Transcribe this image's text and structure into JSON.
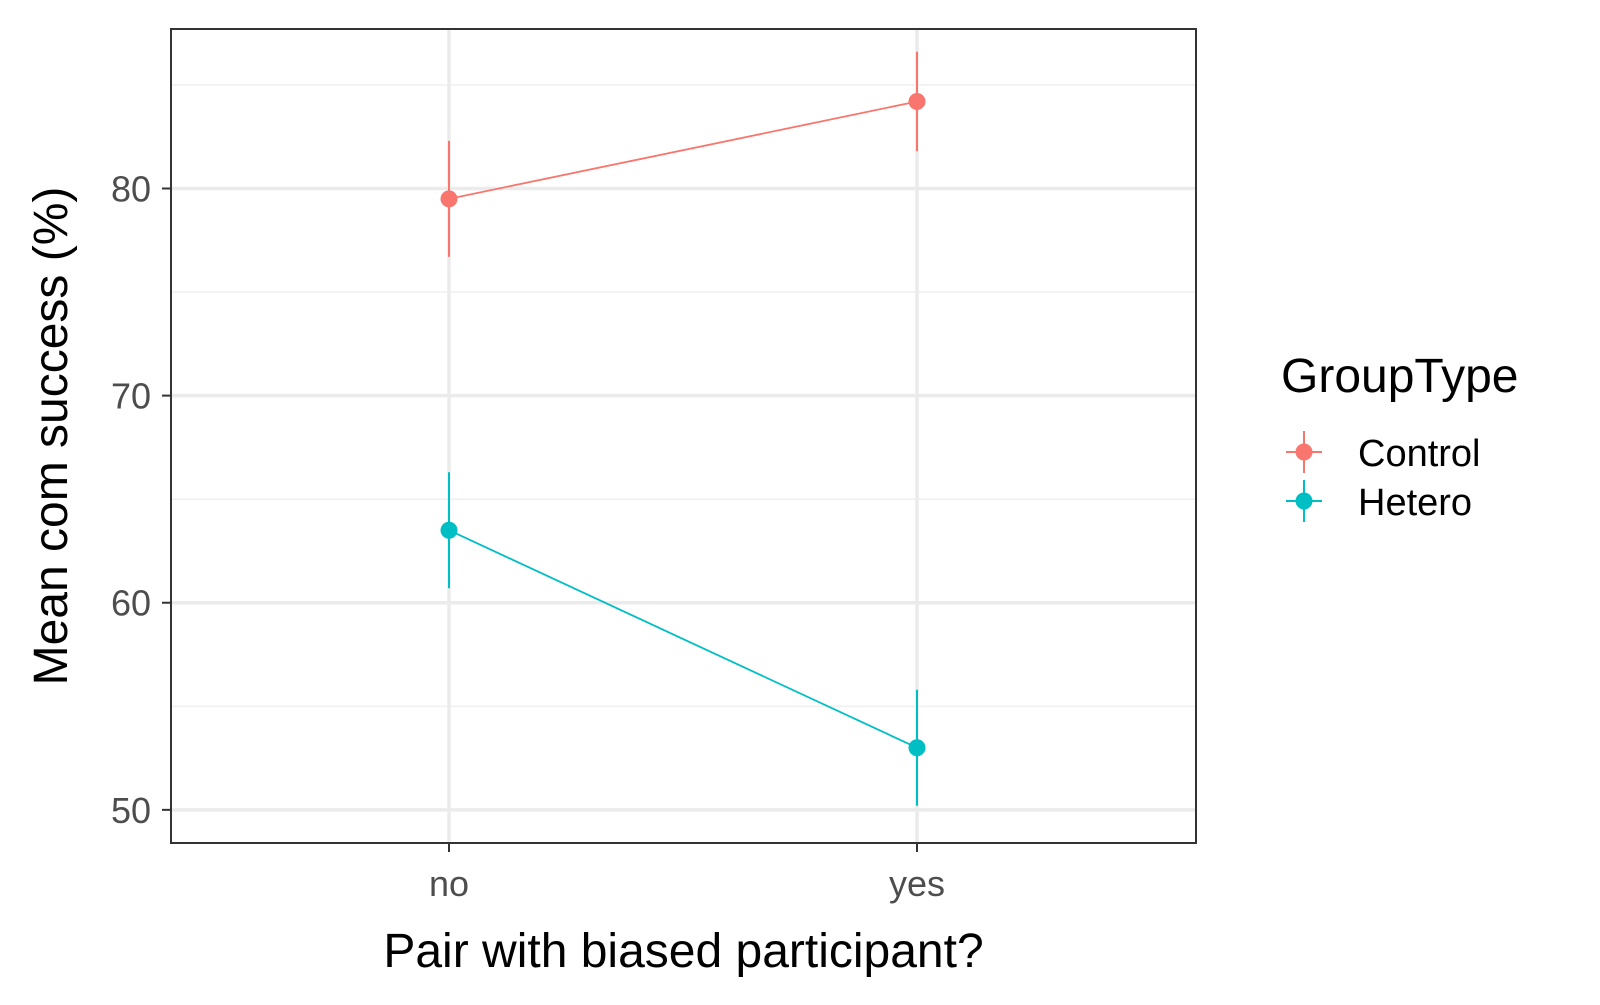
{
  "chart_data": {
    "type": "line",
    "categories": [
      "no",
      "yes"
    ],
    "xlabel": "Pair with biased participant?",
    "ylabel": "Mean com success (%)",
    "ylim": [
      48.4,
      87.7
    ],
    "yticks": [
      50,
      60,
      70,
      80
    ],
    "grid": true,
    "legend": {
      "title": "GroupType",
      "position": "right"
    },
    "series": [
      {
        "name": "Control",
        "color": "#F8766D",
        "values": [
          79.5,
          84.2
        ],
        "error_low": [
          76.7,
          81.8
        ],
        "error_high": [
          82.3,
          86.6
        ]
      },
      {
        "name": "Hetero",
        "color": "#00BFC4",
        "values": [
          63.5,
          53.0
        ],
        "error_low": [
          60.7,
          50.2
        ],
        "error_high": [
          66.3,
          55.8
        ]
      }
    ]
  }
}
